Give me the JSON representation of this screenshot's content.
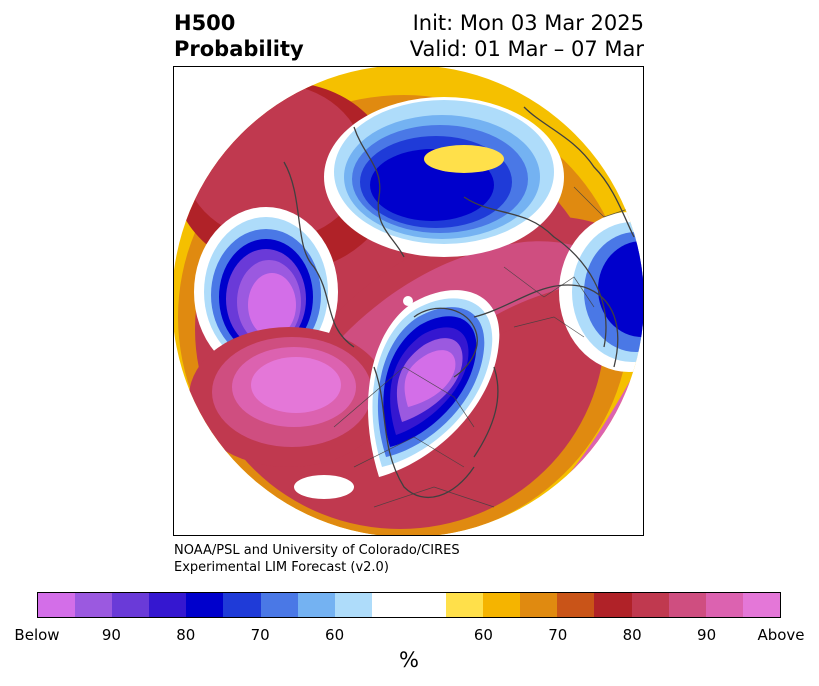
{
  "title": {
    "left_line1": "H500",
    "left_line2": "Probability",
    "right_line1": "Init: Mon 03 Mar 2025",
    "right_line2": "Valid: 01 Mar – 07 Mar"
  },
  "credit": {
    "line1": "NOAA/PSL and University of Colorado/CIRES",
    "line2": "Experimental LIM Forecast (v2.0)"
  },
  "colorbar": {
    "colors": [
      "#d36ee8",
      "#9b59e0",
      "#6a3ad8",
      "#3517d0",
      "#0000cc",
      "#1f3bd8",
      "#4a78e6",
      "#74b2f2",
      "#aedcfa",
      "#ffffff",
      "#ffe04a",
      "#f5b400",
      "#e08a10",
      "#c95418",
      "#b02228",
      "#c0394f",
      "#cf4e80",
      "#dc62b0",
      "#e477d8"
    ],
    "tick_labels": [
      "Below",
      "90",
      "80",
      "70",
      "60",
      "60",
      "70",
      "80",
      "90",
      "Above"
    ],
    "unit": "%"
  },
  "map": {
    "projection": "north-polar-stereographic",
    "features": [
      "coastlines",
      "country-borders",
      "state-borders"
    ]
  }
}
